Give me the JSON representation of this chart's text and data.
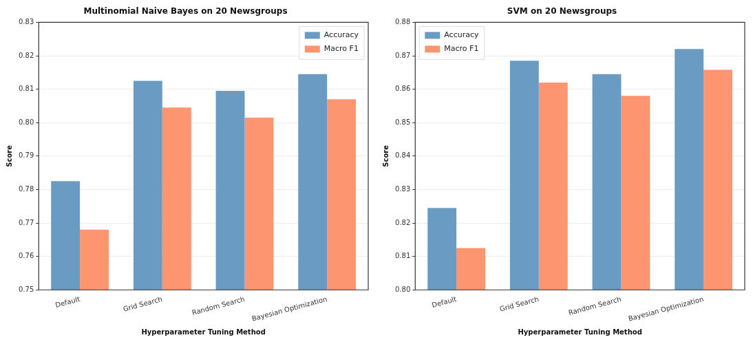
{
  "chart_data": [
    {
      "type": "bar",
      "title": "Multinomial Naive Bayes on 20 Newsgroups",
      "xlabel": "Hyperparameter Tuning Method",
      "ylabel": "Score",
      "categories": [
        "Default",
        "Grid Search",
        "Random Search",
        "Bayesian Optimization"
      ],
      "series": [
        {
          "name": "Accuracy",
          "color": "#6a9bc3",
          "values": [
            0.7825,
            0.8125,
            0.8095,
            0.8145
          ]
        },
        {
          "name": "Macro F1",
          "color": "#fc9570",
          "values": [
            0.768,
            0.8045,
            0.8015,
            0.807
          ]
        }
      ],
      "ylim": [
        0.75,
        0.83
      ],
      "yticks": [
        0.75,
        0.76,
        0.77,
        0.78,
        0.79,
        {
          "value": 0.8,
          "label": "0.80"
        },
        0.81,
        0.82,
        0.83
      ],
      "grid": "y",
      "legend": "top right"
    },
    {
      "type": "bar",
      "title": "SVM on 20 Newsgroups",
      "xlabel": "Hyperparameter Tuning Method",
      "ylabel": "Score",
      "categories": [
        "Default",
        "Grid Search",
        "Random Search",
        "Bayesian Optimization"
      ],
      "series": [
        {
          "name": "Accuracy",
          "color": "#6a9bc3",
          "values": [
            0.8245,
            0.8685,
            0.8645,
            0.872
          ]
        },
        {
          "name": "Macro F1",
          "color": "#fc9570",
          "values": [
            0.8125,
            0.862,
            0.858,
            0.8658
          ]
        }
      ],
      "ylim": [
        0.8,
        0.88
      ],
      "yticks": [
        {
          "value": 0.8,
          "label": "0.80"
        },
        0.81,
        0.82,
        0.83,
        0.84,
        0.85,
        0.86,
        0.87,
        0.88
      ],
      "grid": "y",
      "legend": "top left"
    }
  ]
}
